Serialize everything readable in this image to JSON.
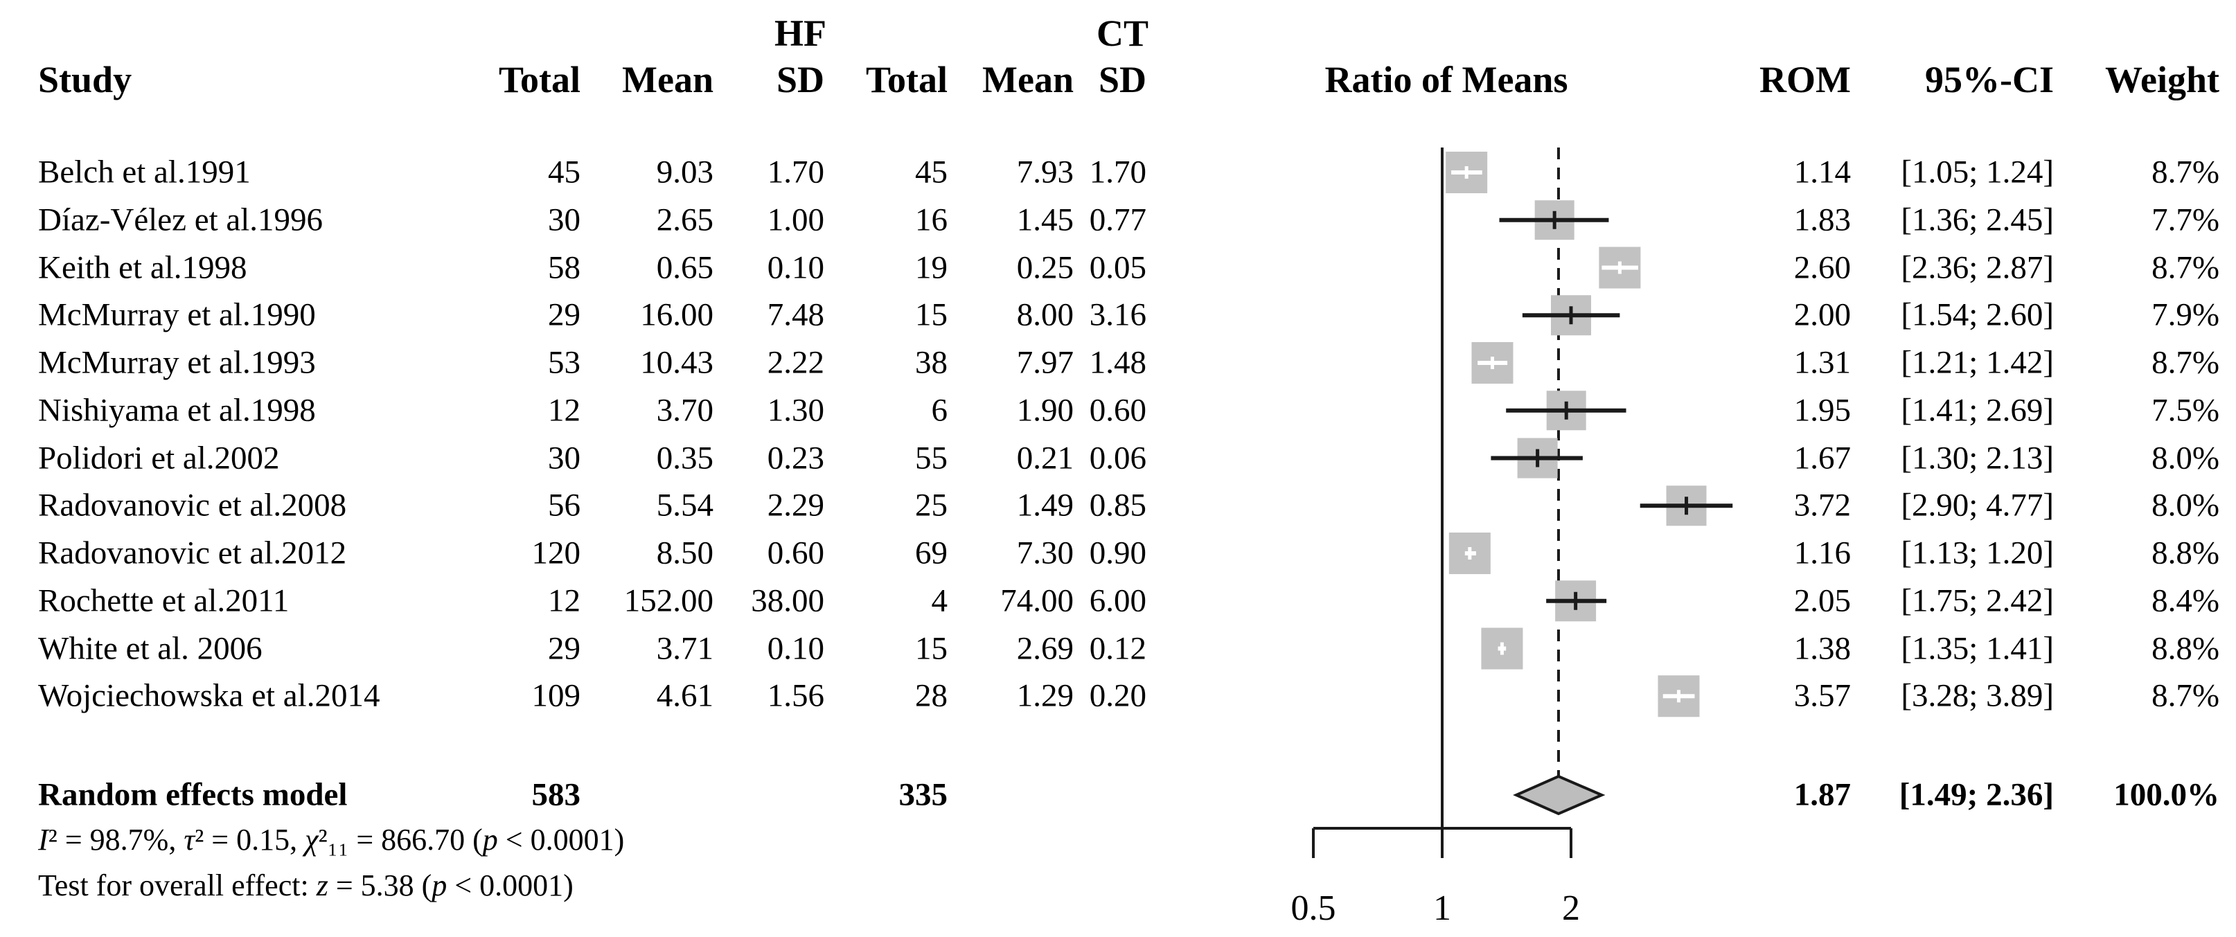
{
  "figure": {
    "header": {
      "group1": "HF",
      "group2": "CT",
      "study": "Study",
      "total1": "Total",
      "mean1": "Mean",
      "sd1": "SD",
      "total2": "Total",
      "mean2": "Mean",
      "sd2": "SD",
      "effect": "Ratio of Means",
      "rom": "ROM",
      "ci": "95%-CI",
      "weight": "Weight"
    },
    "colors": {
      "square_fill": "#c2c2c2",
      "diamond_fill": "#bdbdbd",
      "line": "#1a1a1a",
      "text": "#000000",
      "background": "#ffffff"
    }
  },
  "chart_data": {
    "type": "forest",
    "effect_measure": "Ratio of Means",
    "x_scale": "log",
    "x_ticks": [
      "0.5",
      "1",
      "2"
    ],
    "null_value": 1,
    "pooled_value": 1.87,
    "legend_position": "none",
    "grid": false,
    "studies": [
      {
        "name": "Belch et al.1991",
        "cells": [
          "45",
          "9.03",
          "1.70",
          "45",
          "7.93",
          "1.70"
        ],
        "rom": 1.14,
        "rom_text": "1.14",
        "ci_low": 1.05,
        "ci_high": 1.24,
        "ci_text": "[1.05; 1.24]",
        "weight": 8.7,
        "weight_text": "8.7%"
      },
      {
        "name": "Díaz-Vélez et al.1996",
        "cells": [
          "30",
          "2.65",
          "1.00",
          "16",
          "1.45",
          "0.77"
        ],
        "rom": 1.83,
        "rom_text": "1.83",
        "ci_low": 1.36,
        "ci_high": 2.45,
        "ci_text": "[1.36; 2.45]",
        "weight": 7.7,
        "weight_text": "7.7%"
      },
      {
        "name": "Keith et al.1998",
        "cells": [
          "58",
          "0.65",
          "0.10",
          "19",
          "0.25",
          "0.05"
        ],
        "rom": 2.6,
        "rom_text": "2.60",
        "ci_low": 2.36,
        "ci_high": 2.87,
        "ci_text": "[2.36; 2.87]",
        "weight": 8.7,
        "weight_text": "8.7%"
      },
      {
        "name": "McMurray et al.1990",
        "cells": [
          "29",
          "16.00",
          "7.48",
          "15",
          "8.00",
          "3.16"
        ],
        "rom": 2.0,
        "rom_text": "2.00",
        "ci_low": 1.54,
        "ci_high": 2.6,
        "ci_text": "[1.54; 2.60]",
        "weight": 7.9,
        "weight_text": "7.9%"
      },
      {
        "name": "McMurray et al.1993",
        "cells": [
          "53",
          "10.43",
          "2.22",
          "38",
          "7.97",
          "1.48"
        ],
        "rom": 1.31,
        "rom_text": "1.31",
        "ci_low": 1.21,
        "ci_high": 1.42,
        "ci_text": "[1.21; 1.42]",
        "weight": 8.7,
        "weight_text": "8.7%"
      },
      {
        "name": "Nishiyama et al.1998",
        "cells": [
          "12",
          "3.70",
          "1.30",
          "6",
          "1.90",
          "0.60"
        ],
        "rom": 1.95,
        "rom_text": "1.95",
        "ci_low": 1.41,
        "ci_high": 2.69,
        "ci_text": "[1.41; 2.69]",
        "weight": 7.5,
        "weight_text": "7.5%"
      },
      {
        "name": "Polidori et al.2002",
        "cells": [
          "30",
          "0.35",
          "0.23",
          "55",
          "0.21",
          "0.06"
        ],
        "rom": 1.67,
        "rom_text": "1.67",
        "ci_low": 1.3,
        "ci_high": 2.13,
        "ci_text": "[1.30; 2.13]",
        "weight": 8.0,
        "weight_text": "8.0%"
      },
      {
        "name": "Radovanovic et al.2008",
        "cells": [
          "56",
          "5.54",
          "2.29",
          "25",
          "1.49",
          "0.85"
        ],
        "rom": 3.72,
        "rom_text": "3.72",
        "ci_low": 2.9,
        "ci_high": 4.77,
        "ci_text": "[2.90; 4.77]",
        "weight": 8.0,
        "weight_text": "8.0%"
      },
      {
        "name": "Radovanovic et al.2012",
        "cells": [
          "120",
          "8.50",
          "0.60",
          "69",
          "7.30",
          "0.90"
        ],
        "rom": 1.16,
        "rom_text": "1.16",
        "ci_low": 1.13,
        "ci_high": 1.2,
        "ci_text": "[1.13; 1.20]",
        "weight": 8.8,
        "weight_text": "8.8%"
      },
      {
        "name": "Rochette et al.2011",
        "cells": [
          "12",
          "152.00",
          "38.00",
          "4",
          "74.00",
          "6.00"
        ],
        "rom": 2.05,
        "rom_text": "2.05",
        "ci_low": 1.75,
        "ci_high": 2.42,
        "ci_text": "[1.75; 2.42]",
        "weight": 8.4,
        "weight_text": "8.4%"
      },
      {
        "name": "White et al. 2006",
        "cells": [
          "29",
          "3.71",
          "0.10",
          "15",
          "2.69",
          "0.12"
        ],
        "rom": 1.38,
        "rom_text": "1.38",
        "ci_low": 1.35,
        "ci_high": 1.41,
        "ci_text": "[1.35; 1.41]",
        "weight": 8.8,
        "weight_text": "8.8%"
      },
      {
        "name": "Wojciechowska et al.2014",
        "cells": [
          "109",
          "4.61",
          "1.56",
          "28",
          "1.29",
          "0.20"
        ],
        "rom": 3.57,
        "rom_text": "3.57",
        "ci_low": 3.28,
        "ci_high": 3.89,
        "ci_text": "[3.28; 3.89]",
        "weight": 8.7,
        "weight_text": "8.7%"
      }
    ],
    "pooled": {
      "label": "Random effects model",
      "hf_total": "583",
      "ct_total": "335",
      "rom": 1.87,
      "rom_text": "1.87",
      "ci_low": 1.49,
      "ci_high": 2.36,
      "ci_text": "[1.49; 2.36]",
      "weight_text": "100.0%"
    },
    "heterogeneity": {
      "segments": [
        {
          "t": "I",
          "i": true
        },
        {
          "t": "² = 98.7%, "
        },
        {
          "t": "τ",
          "i": true
        },
        {
          "t": "² = 0.15, "
        },
        {
          "t": "χ",
          "i": true
        },
        {
          "t": "²₁₁ = 866.70 ("
        },
        {
          "t": "p",
          "i": true
        },
        {
          "t": " < 0.0001)"
        }
      ]
    },
    "overall_test": {
      "segments": [
        {
          "t": "Test for overall effect: "
        },
        {
          "t": "z",
          "i": true
        },
        {
          "t": " = 5.38 ("
        },
        {
          "t": "p",
          "i": true
        },
        {
          "t": " < 0.0001)"
        }
      ]
    }
  }
}
